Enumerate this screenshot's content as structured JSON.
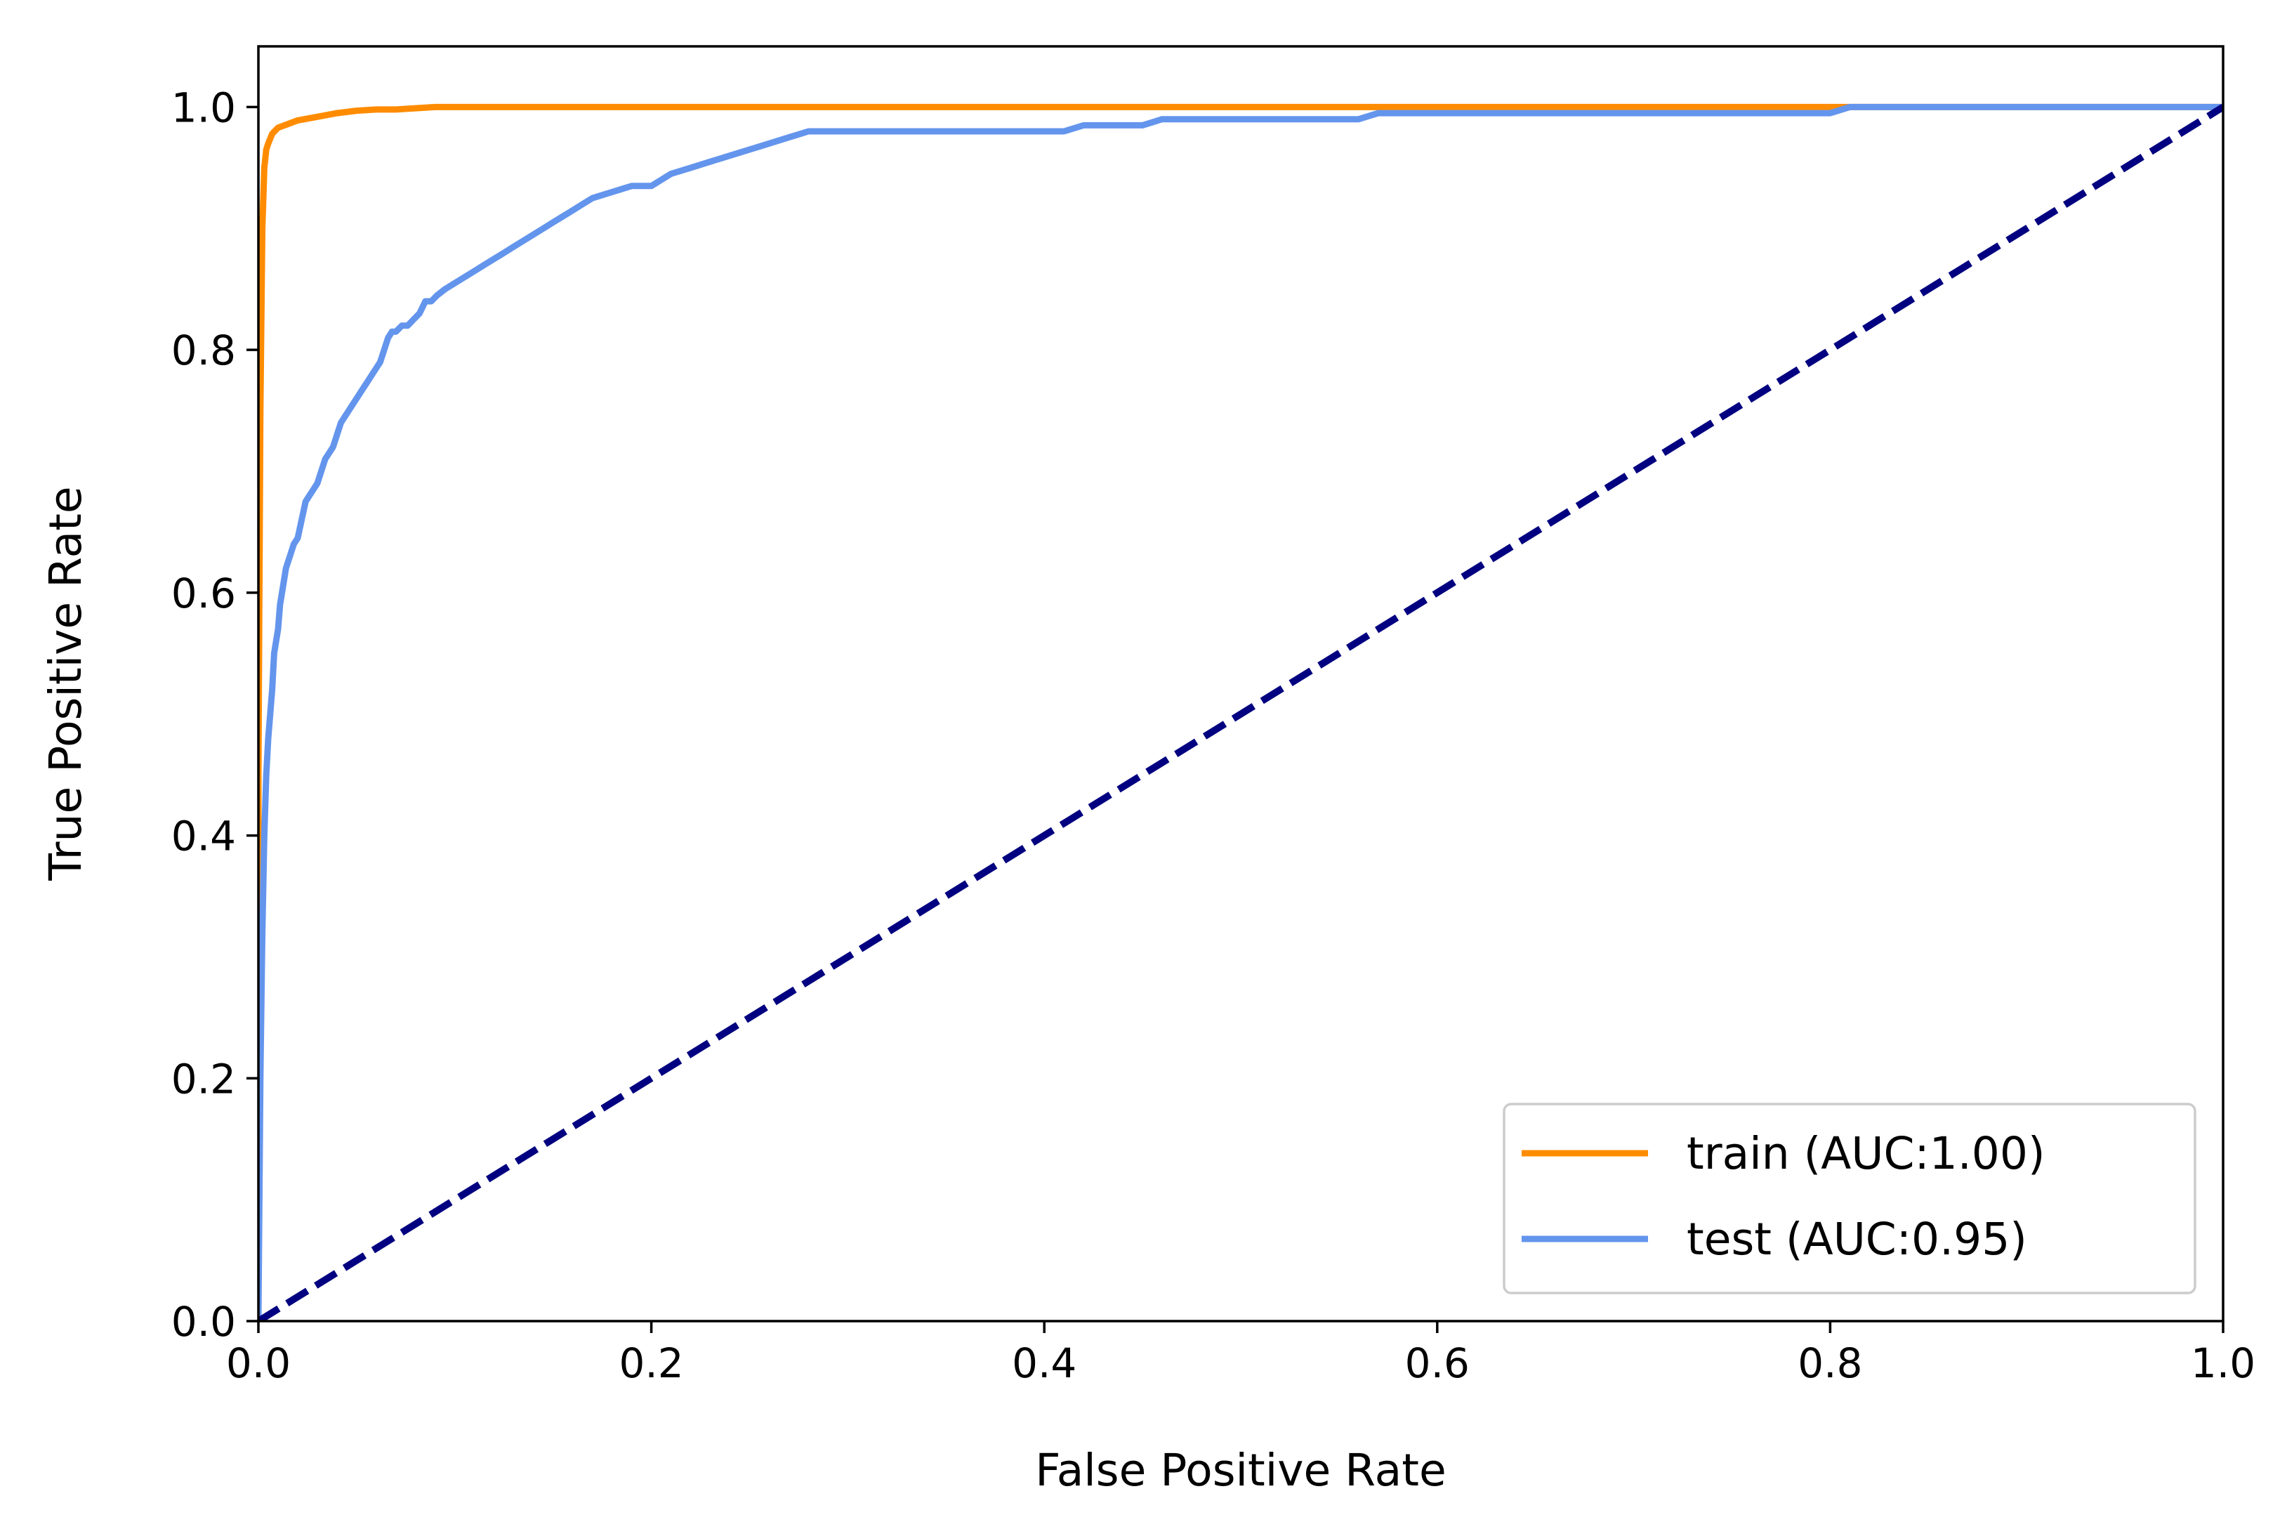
{
  "chart_data": {
    "type": "line",
    "title": "",
    "xlabel": "False Positive Rate",
    "ylabel": "True Positive Rate",
    "xlim": [
      0.0,
      1.0
    ],
    "ylim": [
      0.0,
      1.05
    ],
    "x_ticks": [
      "0.0",
      "0.2",
      "0.4",
      "0.6",
      "0.8",
      "1.0"
    ],
    "y_ticks": [
      "0.0",
      "0.2",
      "0.4",
      "0.6",
      "0.8",
      "1.0"
    ],
    "grid": false,
    "legend_position": "lower-right",
    "series": [
      {
        "name": "train (AUC:1.00)",
        "color": "#ff8c00",
        "style": "solid",
        "x": [
          0.0,
          0.0,
          0.001,
          0.002,
          0.003,
          0.004,
          0.005,
          0.007,
          0.01,
          0.015,
          0.02,
          0.03,
          0.04,
          0.05,
          0.06,
          0.07,
          0.09,
          0.15,
          0.4,
          0.8,
          1.0
        ],
        "y": [
          0.0,
          0.45,
          0.75,
          0.9,
          0.95,
          0.965,
          0.97,
          0.978,
          0.983,
          0.986,
          0.989,
          0.992,
          0.995,
          0.997,
          0.998,
          0.998,
          1.0,
          1.0,
          1.0,
          1.0,
          1.0
        ]
      },
      {
        "name": "test (AUC:0.95)",
        "color": "#6495ed",
        "style": "solid",
        "x": [
          0.0,
          0.001,
          0.002,
          0.003,
          0.004,
          0.005,
          0.006,
          0.007,
          0.008,
          0.009,
          0.01,
          0.011,
          0.012,
          0.013,
          0.014,
          0.016,
          0.018,
          0.02,
          0.022,
          0.024,
          0.026,
          0.028,
          0.03,
          0.032,
          0.034,
          0.036,
          0.038,
          0.04,
          0.042,
          0.044,
          0.046,
          0.048,
          0.05,
          0.052,
          0.054,
          0.056,
          0.058,
          0.06,
          0.062,
          0.064,
          0.066,
          0.068,
          0.07,
          0.073,
          0.076,
          0.079,
          0.082,
          0.085,
          0.088,
          0.091,
          0.095,
          0.1,
          0.105,
          0.11,
          0.115,
          0.12,
          0.125,
          0.13,
          0.135,
          0.14,
          0.145,
          0.15,
          0.155,
          0.16,
          0.165,
          0.17,
          0.18,
          0.19,
          0.2,
          0.21,
          0.22,
          0.23,
          0.24,
          0.25,
          0.26,
          0.27,
          0.28,
          0.3,
          0.35,
          0.41,
          0.42,
          0.45,
          0.46,
          0.5,
          0.56,
          0.57,
          0.7,
          0.8,
          0.81,
          0.9,
          1.0
        ],
        "y": [
          0.0,
          0.2,
          0.32,
          0.4,
          0.45,
          0.48,
          0.5,
          0.52,
          0.55,
          0.56,
          0.57,
          0.59,
          0.6,
          0.61,
          0.62,
          0.63,
          0.64,
          0.645,
          0.66,
          0.675,
          0.68,
          0.685,
          0.69,
          0.7,
          0.71,
          0.715,
          0.72,
          0.73,
          0.74,
          0.745,
          0.75,
          0.755,
          0.76,
          0.765,
          0.77,
          0.775,
          0.78,
          0.785,
          0.79,
          0.8,
          0.81,
          0.815,
          0.815,
          0.82,
          0.82,
          0.825,
          0.83,
          0.84,
          0.84,
          0.845,
          0.85,
          0.855,
          0.86,
          0.865,
          0.87,
          0.875,
          0.88,
          0.885,
          0.89,
          0.895,
          0.9,
          0.905,
          0.91,
          0.915,
          0.92,
          0.925,
          0.93,
          0.935,
          0.935,
          0.945,
          0.95,
          0.955,
          0.96,
          0.965,
          0.97,
          0.975,
          0.98,
          0.98,
          0.98,
          0.98,
          0.985,
          0.985,
          0.99,
          0.99,
          0.99,
          0.995,
          0.995,
          0.995,
          1.0,
          1.0,
          1.0
        ]
      },
      {
        "name": "",
        "color": "#000080",
        "style": "dashed",
        "x": [
          0.0,
          1.0
        ],
        "y": [
          0.0,
          1.0
        ]
      }
    ]
  }
}
